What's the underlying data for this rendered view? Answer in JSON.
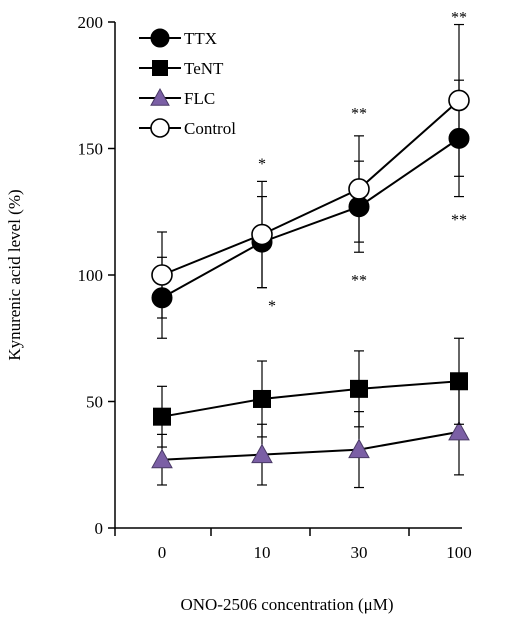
{
  "chart_data": {
    "type": "line",
    "xlabel": "ONO-2506 concentration (μM)",
    "ylabel": "Kynurenic acid level (%)",
    "ylim": [
      0,
      200
    ],
    "yticks": [
      0,
      50,
      100,
      150,
      200
    ],
    "categories": [
      "0",
      "10",
      "30",
      "100"
    ],
    "grid": false,
    "legend_position": "top-left",
    "series": [
      {
        "name": "TTX",
        "marker": "filled-circle",
        "color": "#000000",
        "values": [
          91,
          113,
          127,
          154
        ],
        "error": [
          16,
          18,
          18,
          23
        ]
      },
      {
        "name": "TeNT",
        "marker": "filled-square",
        "color": "#000000",
        "values": [
          44,
          51,
          55,
          58
        ],
        "error": [
          12,
          15,
          15,
          17
        ]
      },
      {
        "name": "FLC",
        "marker": "triangle",
        "color": "#7b5fa5",
        "values": [
          27,
          29,
          31,
          38
        ],
        "error": [
          10,
          12,
          15,
          17
        ]
      },
      {
        "name": "Control",
        "marker": "open-circle",
        "color": "#000000",
        "values": [
          100,
          116,
          134,
          169
        ],
        "error": [
          17,
          21,
          21,
          30
        ]
      }
    ],
    "annotations": [
      {
        "text": "*",
        "x": "10",
        "y": 145
      },
      {
        "text": "**",
        "x": "30",
        "y": 165
      },
      {
        "text": "**",
        "x": "100",
        "y": 203
      },
      {
        "text": "*",
        "x": "10",
        "y": 89
      },
      {
        "text": "**",
        "x": "30",
        "y": 99
      },
      {
        "text": "**",
        "x": "100",
        "y": 123
      }
    ]
  }
}
